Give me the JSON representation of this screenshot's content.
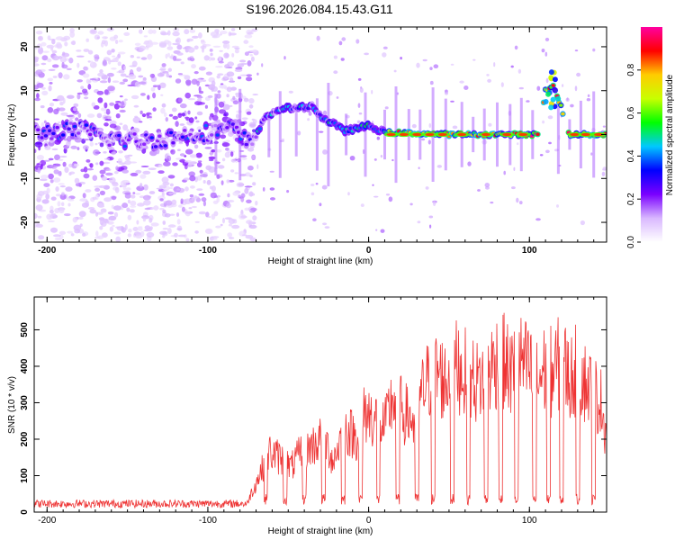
{
  "figure_title": "S196.2026.084.15.43.G11",
  "chart_data": [
    {
      "type": "heatmap",
      "xlabel": "Height of straight line (km)",
      "ylabel": "Frequency (Hz)",
      "xlim": [
        -208,
        148
      ],
      "ylim": [
        -24.5,
        24.5
      ],
      "xticks": [
        -200,
        -100,
        0,
        100
      ],
      "yticks": [
        -20,
        -10,
        0,
        10,
        20
      ],
      "grid": false,
      "ridge": [
        {
          "x": -205,
          "y": 0.5
        },
        {
          "x": -180,
          "y": 1.0
        },
        {
          "x": -160,
          "y": -1.0
        },
        {
          "x": -140,
          "y": -1.5
        },
        {
          "x": -120,
          "y": -0.5
        },
        {
          "x": -100,
          "y": 0.5
        },
        {
          "x": -85,
          "y": 1.5
        },
        {
          "x": -75,
          "y": -2.0
        },
        {
          "x": -70,
          "y": 0.0
        },
        {
          "x": -65,
          "y": 3.5
        },
        {
          "x": -55,
          "y": 6.0
        },
        {
          "x": -45,
          "y": 6.0
        },
        {
          "x": -35,
          "y": 6.5
        },
        {
          "x": -28,
          "y": 3.5
        },
        {
          "x": -22,
          "y": 2.5
        },
        {
          "x": -15,
          "y": 0.8
        },
        {
          "x": 0,
          "y": 2.0
        },
        {
          "x": 10,
          "y": 0.5
        },
        {
          "x": 50,
          "y": 0.0
        },
        {
          "x": 100,
          "y": 0.0
        },
        {
          "x": 105,
          "y": 0.0
        },
        {
          "x": 110,
          "y": 10.0
        },
        {
          "x": 115,
          "y": 11.0
        },
        {
          "x": 120,
          "y": 6.0
        },
        {
          "x": 125,
          "y": 0.0
        },
        {
          "x": 148,
          "y": 0.0
        }
      ],
      "colorbar": {
        "label": "Normalized spectral amplitude",
        "range": [
          0.0,
          1.0
        ],
        "ticks": [
          0.0,
          0.2,
          0.4,
          0.6,
          0.8
        ],
        "tick_labels": [
          "0.0",
          "0.2",
          "0.4",
          "0.6",
          "0.8"
        ],
        "colors": [
          "#ffffff",
          "#d9b8ff",
          "#7a00ff",
          "#0000ff",
          "#00c8ff",
          "#00ff00",
          "#c8ff00",
          "#ffcc00",
          "#ff0000",
          "#ff00a0"
        ]
      }
    },
    {
      "type": "line",
      "xlabel": "Height of straight line (km)",
      "ylabel": "SNR (10 * v/v)",
      "xlim": [
        -208,
        148
      ],
      "ylim": [
        0,
        590
      ],
      "xticks": [
        -200,
        -100,
        0,
        100
      ],
      "yticks": [
        0,
        100,
        200,
        300,
        400,
        500
      ],
      "grid": false,
      "color": "#ee3333",
      "series": [
        {
          "x": [
            -208,
            -190,
            -170,
            -150,
            -130,
            -110,
            -90,
            -80,
            -75,
            -68,
            -62,
            -55,
            -48,
            -42,
            -35,
            -28,
            -22,
            -15,
            -8,
            -2,
            5,
            10,
            15,
            22,
            28,
            35,
            42,
            48,
            55,
            62,
            68,
            75,
            82,
            88,
            95,
            100,
            105,
            110,
            115,
            120,
            125,
            130,
            135,
            140,
            145,
            148
          ],
          "y": [
            18,
            22,
            20,
            25,
            18,
            22,
            20,
            25,
            40,
            120,
            200,
            180,
            150,
            200,
            220,
            250,
            170,
            280,
            250,
            330,
            310,
            280,
            380,
            330,
            300,
            420,
            470,
            430,
            490,
            450,
            430,
            470,
            520,
            460,
            500,
            470,
            430,
            480,
            460,
            510,
            440,
            480,
            430,
            400,
            360,
            250
          ]
        }
      ]
    }
  ]
}
